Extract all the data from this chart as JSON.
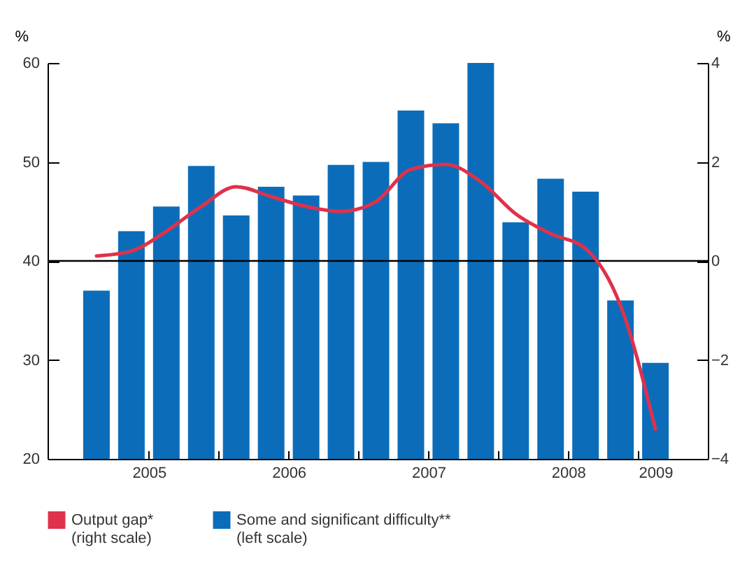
{
  "chart_data": {
    "type": "bar",
    "x": [
      2005.125,
      2005.375,
      2005.625,
      2005.875,
      2006.125,
      2006.375,
      2006.625,
      2006.875,
      2007.125,
      2007.375,
      2007.625,
      2007.875,
      2008.125,
      2008.375,
      2008.625,
      2008.875,
      2009.125
    ],
    "xlim": [
      2004.775,
      2009.5
    ],
    "xticks": [
      {
        "value": 2005.5,
        "label": "2005"
      },
      {
        "value": 2006,
        "label": null
      },
      {
        "value": 2006.5,
        "label": "2006"
      },
      {
        "value": 2007,
        "label": null
      },
      {
        "value": 2007.5,
        "label": "2007"
      },
      {
        "value": 2008,
        "label": null
      },
      {
        "value": 2008.5,
        "label": "2008"
      },
      {
        "value": 2009,
        "label": null
      },
      {
        "value": 2009.125,
        "label": "2009"
      }
    ],
    "ylabel": "%",
    "y2label": "%",
    "ylim": [
      20,
      60
    ],
    "yticks": [
      20,
      30,
      40,
      50,
      60
    ],
    "y2lim": [
      -4,
      4
    ],
    "y2ticks": [
      -4,
      -2,
      0,
      2,
      4
    ],
    "series": [
      {
        "name": "Output gap*\n(right scale)",
        "type": "line",
        "axis": "y2",
        "color": "#e0314b",
        "values": [
          0.1,
          0.2,
          0.6,
          1.1,
          1.5,
          1.3,
          1.1,
          1.0,
          1.2,
          1.85,
          1.95,
          1.6,
          0.95,
          0.55,
          0.25,
          -0.9,
          -3.4
        ]
      },
      {
        "name": "Some and significant difficulty**\n(left scale)",
        "color": "#0b6dba",
        "values": [
          37,
          43,
          45.5,
          49.6,
          44.6,
          47.5,
          46.6,
          49.7,
          50,
          55.2,
          53.9,
          60,
          43.9,
          48.3,
          47,
          36,
          29.7
        ]
      }
    ],
    "ref_lines": [
      {
        "axis": "y",
        "value": 40,
        "color": "#000000"
      }
    ],
    "legend": "bottom"
  }
}
